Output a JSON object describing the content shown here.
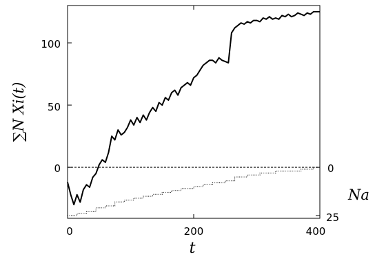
{
  "chart_data": {
    "type": "line",
    "title": "",
    "xlabel": "t",
    "ylabel_left": "∑N Xi(t)",
    "ylabel_right": "Na",
    "xlim": [
      0,
      400
    ],
    "ylim_left": [
      -41,
      130
    ],
    "ylim_right": [
      25,
      0
    ],
    "x_ticks": [
      "0",
      "200",
      "400"
    ],
    "y_ticks_left": [
      "0",
      "50",
      "100"
    ],
    "y_ticks_right": [
      "0",
      "25"
    ],
    "grid": false,
    "reference_line": {
      "y": 0,
      "style": "dashed"
    },
    "series": [
      {
        "axis": "left",
        "style": "solid",
        "x": [
          0,
          5,
          10,
          15,
          20,
          25,
          30,
          35,
          40,
          45,
          50,
          55,
          60,
          65,
          70,
          75,
          80,
          85,
          90,
          95,
          100,
          105,
          110,
          115,
          120,
          125,
          130,
          135,
          140,
          145,
          150,
          155,
          160,
          165,
          170,
          175,
          180,
          185,
          190,
          195,
          200,
          205,
          210,
          215,
          220,
          225,
          230,
          235,
          240,
          245,
          250,
          255,
          260,
          265,
          270,
          275,
          280,
          285,
          290,
          295,
          300,
          305,
          310,
          315,
          320,
          325,
          330,
          335,
          340,
          345,
          350,
          355,
          360,
          365,
          370,
          375,
          380,
          385,
          390,
          395,
          400
        ],
        "values": [
          -12,
          -22,
          -30,
          -22,
          -28,
          -18,
          -14,
          -16,
          -8,
          -5,
          2,
          6,
          4,
          12,
          25,
          22,
          30,
          26,
          28,
          32,
          38,
          34,
          40,
          36,
          42,
          38,
          44,
          48,
          45,
          52,
          50,
          56,
          54,
          60,
          62,
          58,
          64,
          66,
          68,
          66,
          72,
          74,
          78,
          82,
          84,
          86,
          86,
          84,
          88,
          86,
          85,
          84,
          108,
          112,
          114,
          116,
          115,
          117,
          116,
          118,
          118,
          117,
          120,
          119,
          121,
          119,
          120,
          119,
          122,
          121,
          123,
          121,
          122,
          124,
          123,
          122,
          124,
          123,
          125,
          125,
          125
        ]
      },
      {
        "axis": "right",
        "style": "dotted-step",
        "x": [
          0,
          15,
          30,
          45,
          60,
          75,
          90,
          105,
          120,
          135,
          150,
          165,
          180,
          200,
          215,
          230,
          250,
          265,
          285,
          305,
          330,
          350,
          370,
          390,
          400
        ],
        "values": [
          25,
          24,
          23,
          21,
          20,
          18,
          17,
          16,
          15,
          14,
          13,
          12,
          11,
          10,
          9,
          8,
          7,
          5,
          4,
          3,
          2,
          2,
          1,
          0,
          0
        ]
      }
    ]
  }
}
